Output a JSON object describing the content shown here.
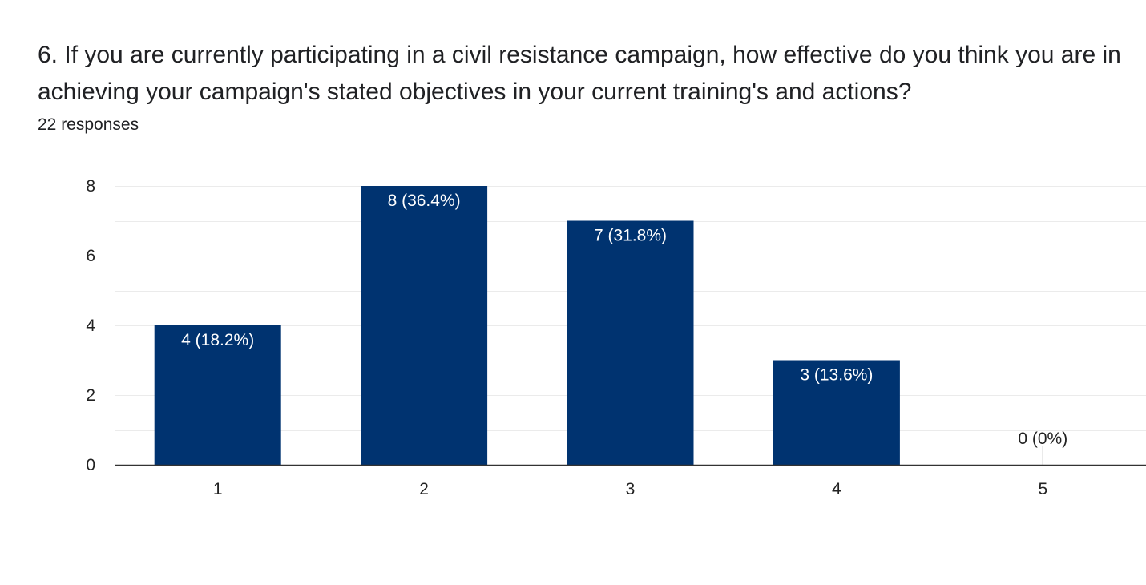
{
  "question": {
    "title": "6. If you are currently participating in a civil resistance campaign, how effective do you think you are in achieving your campaign's stated objectives in your current training's and actions?",
    "response_count": "22 responses"
  },
  "colors": {
    "bar": "#003370",
    "gridline": "#ebebeb",
    "baseline": "#333333",
    "label_inside": "#ffffff",
    "label_outside": "#222222"
  },
  "chart_data": {
    "type": "bar",
    "categories": [
      "1",
      "2",
      "3",
      "4",
      "5"
    ],
    "values": [
      4,
      8,
      7,
      3,
      0
    ],
    "data_labels": [
      "4 (18.2%)",
      "8 (36.4%)",
      "7 (31.8%)",
      "3 (13.6%)",
      "0 (0%)"
    ],
    "ylim": [
      0,
      8
    ],
    "y_ticks": [
      0,
      2,
      4,
      6,
      8
    ],
    "y_tick_labels": [
      "0",
      "2",
      "4",
      "6",
      "8"
    ],
    "minor_gridlines": true,
    "title": "",
    "xlabel": "",
    "ylabel": "",
    "legend": "none"
  }
}
